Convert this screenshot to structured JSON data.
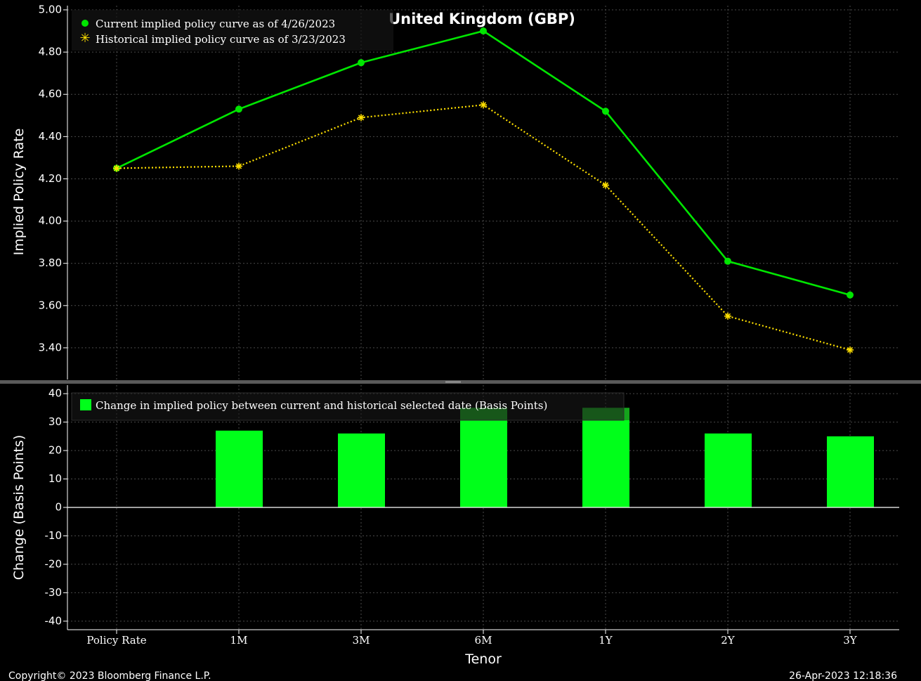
{
  "chart_data": [
    {
      "type": "line",
      "title": "United Kingdom (GBP)",
      "ylabel": "Implied Policy Rate",
      "categories": [
        "Policy Rate",
        "1M",
        "3M",
        "6M",
        "1Y",
        "2Y",
        "3Y"
      ],
      "ylim": [
        3.25,
        5.02
      ],
      "yticks": [
        "5.00",
        "4.80",
        "4.60",
        "4.40",
        "4.20",
        "4.00",
        "3.80",
        "3.60",
        "3.40"
      ],
      "grid": true,
      "legend_position": "top-left",
      "series": [
        {
          "name": "Current implied policy curve as of 4/26/2023",
          "color": "#00e600",
          "marker": "circle",
          "values": [
            4.25,
            4.53,
            4.75,
            4.9,
            4.52,
            3.81,
            3.65
          ]
        },
        {
          "name": "Historical implied policy curve as of 3/23/2023",
          "color": "#ffe000",
          "marker": "star",
          "values": [
            4.25,
            4.26,
            4.49,
            4.55,
            4.17,
            3.55,
            3.39
          ]
        }
      ]
    },
    {
      "type": "bar",
      "ylabel": "Change (Basis Points)",
      "xlabel": "Tenor",
      "categories": [
        "Policy Rate",
        "1M",
        "3M",
        "6M",
        "1Y",
        "2Y",
        "3Y"
      ],
      "ylim": [
        -43,
        43
      ],
      "yticks": [
        "40",
        "30",
        "20",
        "10",
        "0",
        "-10",
        "-20",
        "-30",
        "-40"
      ],
      "grid": true,
      "legend_position": "top-left",
      "series": [
        {
          "name": "Change in implied policy between current and historical selected date (Basis Points)",
          "color": "#00ff1a",
          "values": [
            0,
            27,
            26,
            35,
            35,
            26,
            25
          ]
        }
      ]
    }
  ],
  "footer": {
    "copyright": "Copyright© 2023 Bloomberg Finance L.P.",
    "timestamp": "26-Apr-2023 12:18:36"
  }
}
